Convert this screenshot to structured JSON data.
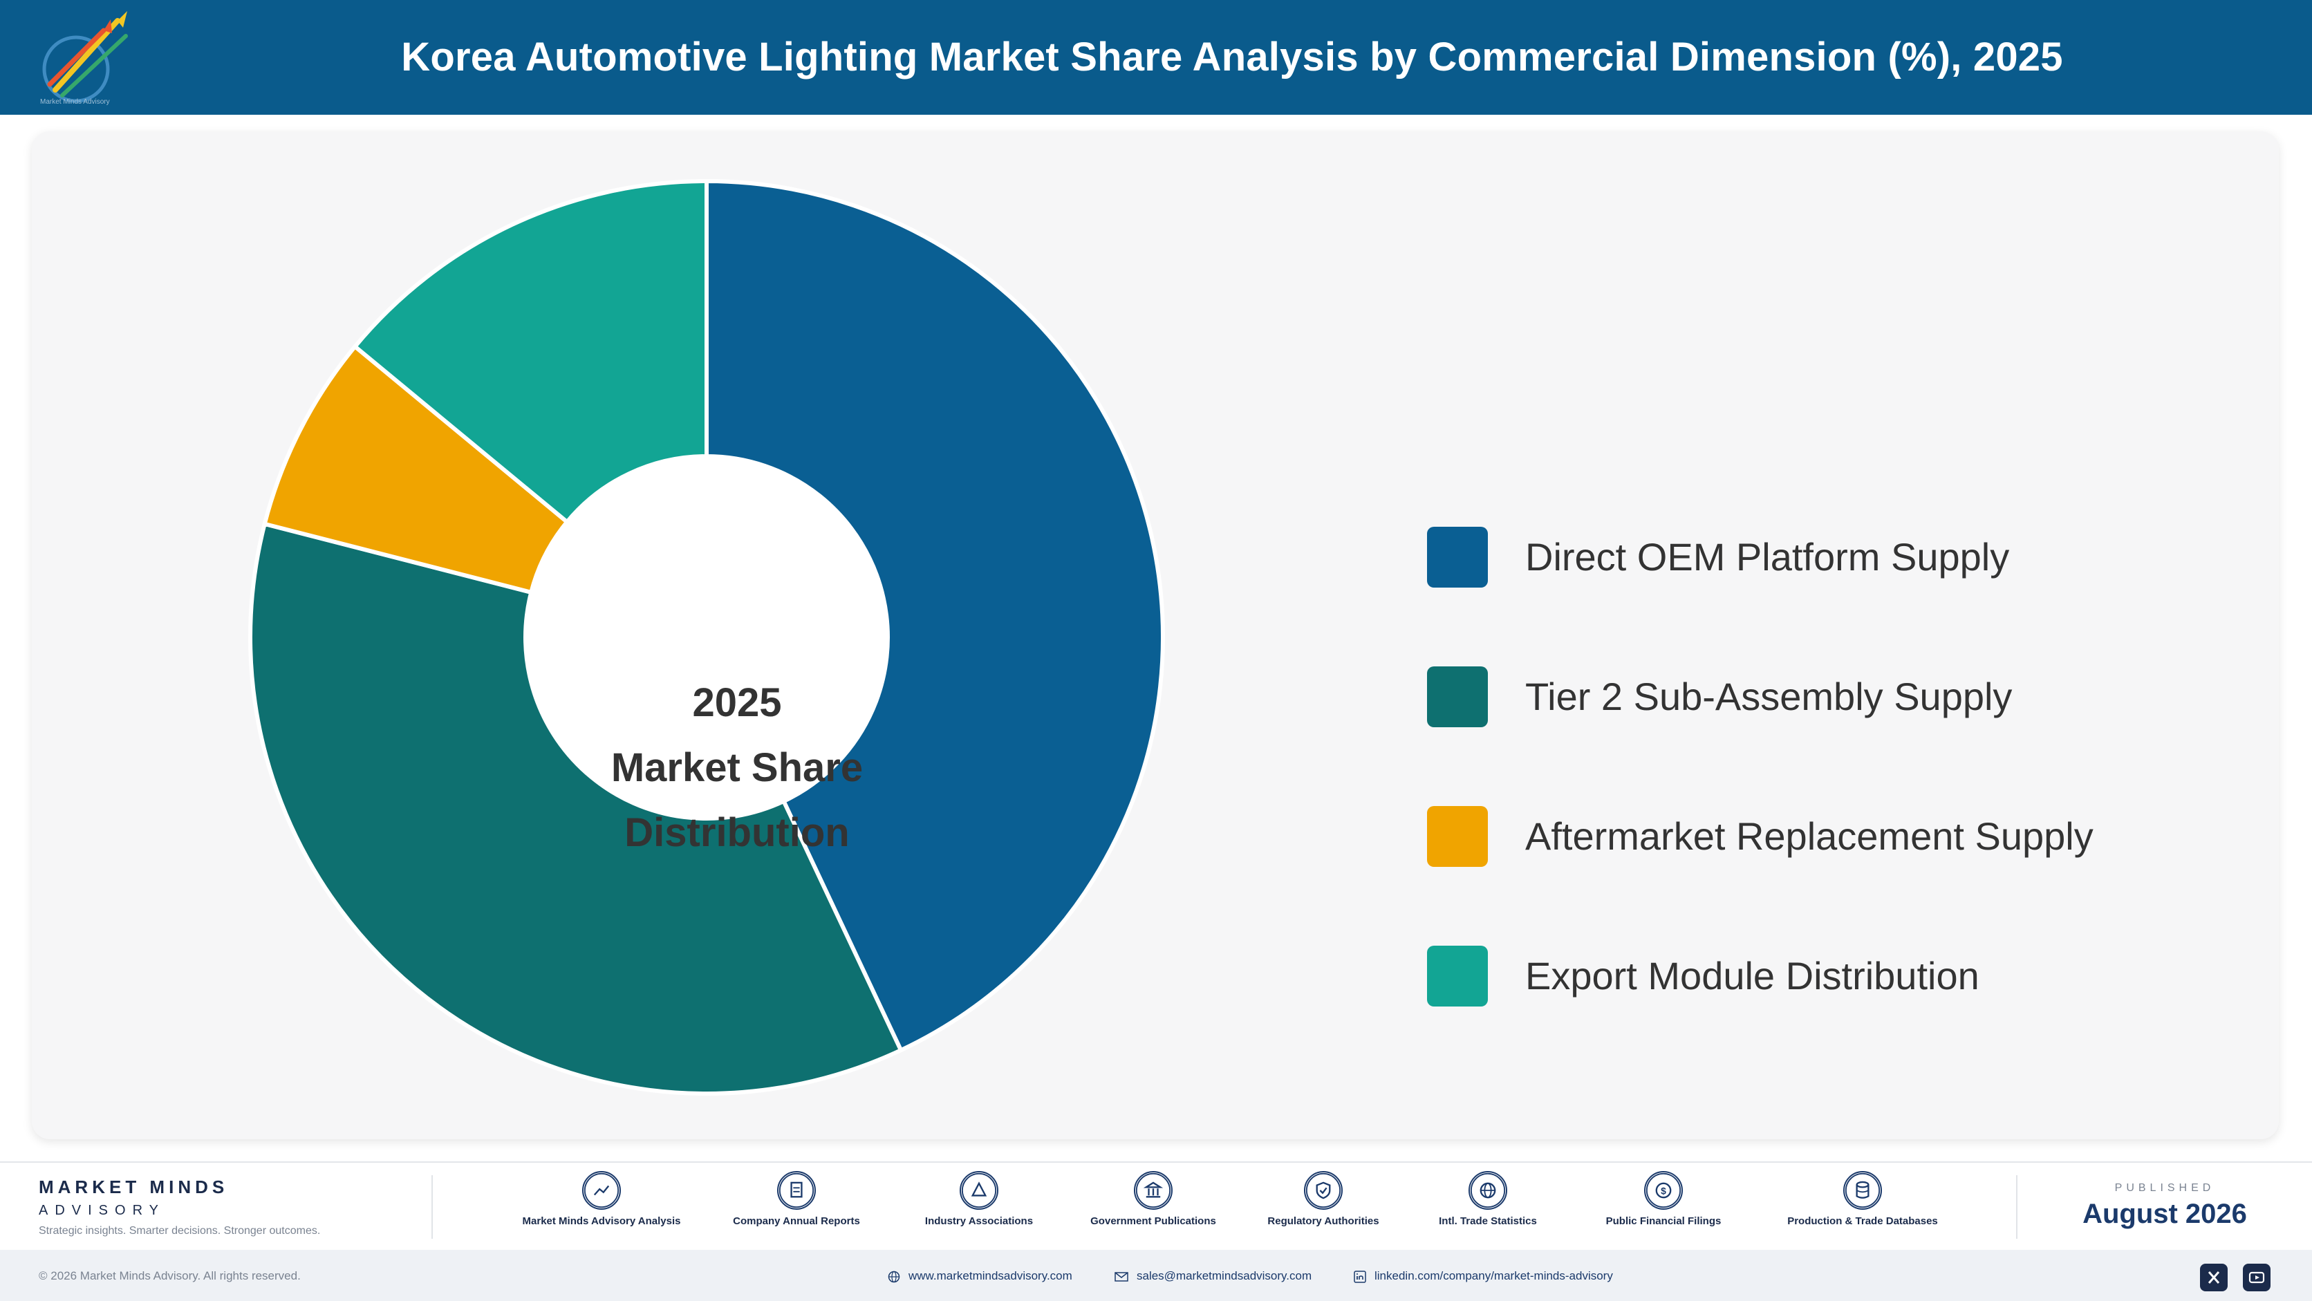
{
  "header": {
    "title": "Korea Automotive Lighting Market Share Analysis by Commercial Dimension (%), 2025",
    "logo_caption": "Market Minds Advisory"
  },
  "chart_data": {
    "type": "pie",
    "center_label": [
      "2025",
      "Market Share",
      "Distribution"
    ],
    "categories": [
      "Direct OEM Platform Supply",
      "Tier 2 Sub-Assembly Supply",
      "Aftermarket Replacement Supply",
      "Export Module Distribution"
    ],
    "values": [
      43,
      36,
      7,
      14
    ],
    "colors": [
      "#0a5f93",
      "#0e7070",
      "#f0a400",
      "#12a594"
    ],
    "legend_position": "right",
    "donut": true
  },
  "footer": {
    "brand_name": "MARKET MINDS",
    "brand_sub": "ADVISORY",
    "brand_tagline": "Strategic insights. Smarter decisions. Stronger outcomes.",
    "sources": [
      {
        "label": "Market Minds Advisory Analysis",
        "icon": "trend-chart-icon"
      },
      {
        "label": "Company Annual Reports",
        "icon": "document-icon"
      },
      {
        "label": "Industry Associations",
        "icon": "network-icon"
      },
      {
        "label": "Government Publications",
        "icon": "government-building-icon"
      },
      {
        "label": "Regulatory Authorities",
        "icon": "shield-check-icon"
      },
      {
        "label": "Intl. Trade Statistics",
        "icon": "globe-icon"
      },
      {
        "label": "Public Financial Filings",
        "icon": "dollar-coin-icon"
      },
      {
        "label": "Production & Trade Databases",
        "icon": "database-icon"
      }
    ],
    "published_label": "PUBLISHED",
    "published_date": "August 2026",
    "copyright": "© 2026 Market Minds Advisory. All rights reserved.",
    "website": "www.marketmindsadvisory.com",
    "email": "sales@marketmindsadvisory.com",
    "linkedin": "linkedin.com/company/market-minds-advisory"
  }
}
